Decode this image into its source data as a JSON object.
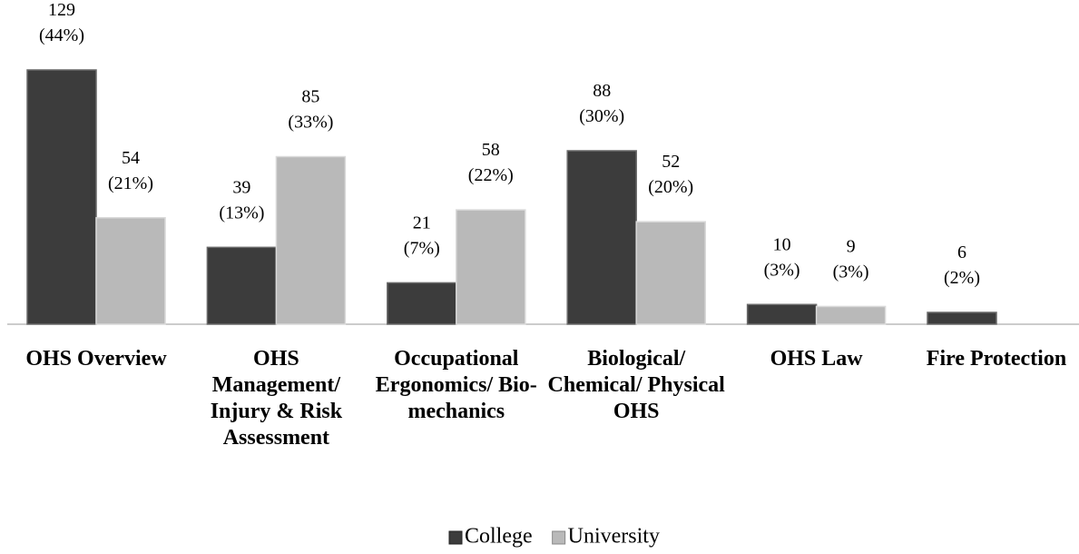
{
  "chart_data": {
    "type": "bar",
    "categories": [
      "OHS Overview",
      "OHS Management/ Injury & Risk Assessment",
      "Occupational Ergonomics/ Bio- mechanics",
      "Biological/ Chemical/ Physical OHS",
      "OHS Law",
      "Fire Protection"
    ],
    "series": [
      {
        "name": "College",
        "color": "#3c3c3c",
        "values": [
          129,
          39,
          21,
          88,
          10,
          6
        ],
        "value_labels": [
          "129 (44%)",
          "39 (13%)",
          "21 (7%)",
          "88 (30%)",
          "10 (3%)",
          "6 (2%)"
        ]
      },
      {
        "name": "University",
        "color": "#b9b9b9",
        "values": [
          54,
          85,
          58,
          52,
          9,
          null
        ],
        "value_labels": [
          "54 (21%)",
          "85 (33%)",
          "58 (22%)",
          "52 (20%)",
          "9 (3%)",
          null
        ]
      }
    ],
    "legend": "bottom"
  }
}
